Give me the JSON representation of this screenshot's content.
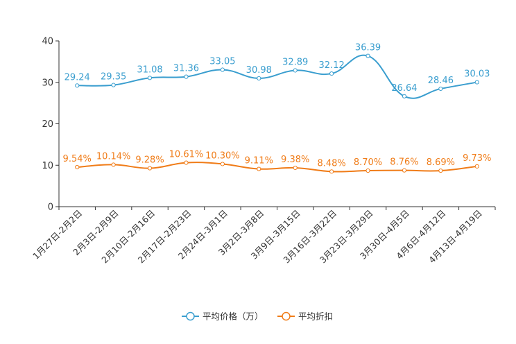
{
  "chart_data": {
    "type": "line",
    "categories": [
      "1月27日-2月2日",
      "2月3日-2月9日",
      "2月10日-2月16日",
      "2月17日-2月23日",
      "2月24日-3月1日",
      "3月2日-3月8日",
      "3月9日-3月15日",
      "3月16日-3月22日",
      "3月23日-3月29日",
      "3月30日-4月5日",
      "4月6日-4月12日",
      "4月13日-4月19日"
    ],
    "ylim": [
      0,
      40
    ],
    "yticks": [
      "0",
      "10",
      "20",
      "30",
      "40"
    ],
    "series": [
      {
        "name": "平均价格（万）",
        "color": "#3a9ecf",
        "values": [
          29.24,
          29.35,
          31.08,
          31.36,
          33.05,
          30.98,
          32.89,
          32.12,
          36.39,
          26.64,
          28.46,
          30.03
        ],
        "labels": [
          "29.24",
          "29.35",
          "31.08",
          "31.36",
          "33.05",
          "30.98",
          "32.89",
          "32.12",
          "36.39",
          "26.64",
          "28.46",
          "30.03"
        ]
      },
      {
        "name": "平均折扣",
        "color": "#f07c18",
        "values": [
          9.54,
          10.14,
          9.28,
          10.61,
          10.3,
          9.11,
          9.38,
          8.48,
          8.7,
          8.76,
          8.69,
          9.73
        ],
        "labels": [
          "9.54%",
          "10.14%",
          "9.28%",
          "10.61%",
          "10.30%",
          "9.11%",
          "9.38%",
          "8.48%",
          "8.70%",
          "8.76%",
          "8.69%",
          "9.73%"
        ]
      }
    ],
    "legend_position": "bottom-center"
  }
}
